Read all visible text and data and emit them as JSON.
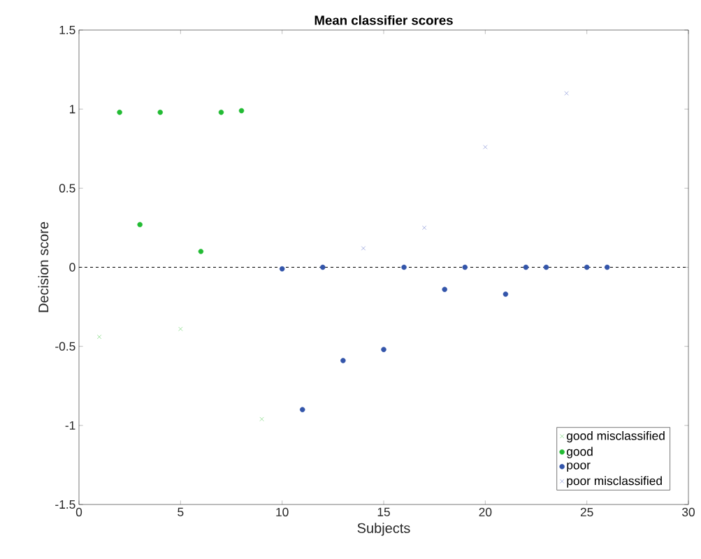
{
  "chart_data": {
    "type": "scatter",
    "title": "Mean classifier scores",
    "xlabel": "Subjects",
    "ylabel": "Decision score",
    "xlim": [
      0,
      30
    ],
    "xticks": [
      0,
      5,
      10,
      15,
      20,
      25,
      30
    ],
    "ylim": [
      -1.5,
      1.5
    ],
    "yticks": [
      -1.5,
      -1,
      -0.5,
      0,
      0.5,
      1,
      1.5
    ],
    "legend": "bottom right",
    "grid": false,
    "series": [
      {
        "name": "good misclassified",
        "color": "#55cc55",
        "marker": "cross",
        "x": [
          1,
          5,
          9
        ],
        "values": [
          -0.44,
          -0.39,
          -0.96
        ]
      },
      {
        "name": "good",
        "color": "#22bb33",
        "marker": "circle",
        "x": [
          2,
          3,
          4,
          6,
          7,
          8
        ],
        "values": [
          0.98,
          0.27,
          0.98,
          0.1,
          0.98,
          0.99
        ]
      },
      {
        "name": "poor",
        "color": "#3355aa",
        "marker": "circle",
        "x": [
          10,
          11,
          12,
          13,
          15,
          16,
          18,
          19,
          21,
          22,
          23,
          25,
          26
        ],
        "values": [
          -0.01,
          -0.9,
          0,
          -0.59,
          -0.52,
          0,
          -0.14,
          0,
          -0.17,
          0,
          0,
          0,
          0
        ]
      },
      {
        "name": "poor misclassified",
        "color": "#6677cc",
        "marker": "cross",
        "x": [
          14,
          17,
          20,
          24
        ],
        "values": [
          0.12,
          0.25,
          0.76,
          1.1
        ]
      }
    ],
    "ref_lines": [
      {
        "axis": "y",
        "value": 0,
        "color": "#000000",
        "line_style": "dashed"
      }
    ]
  }
}
